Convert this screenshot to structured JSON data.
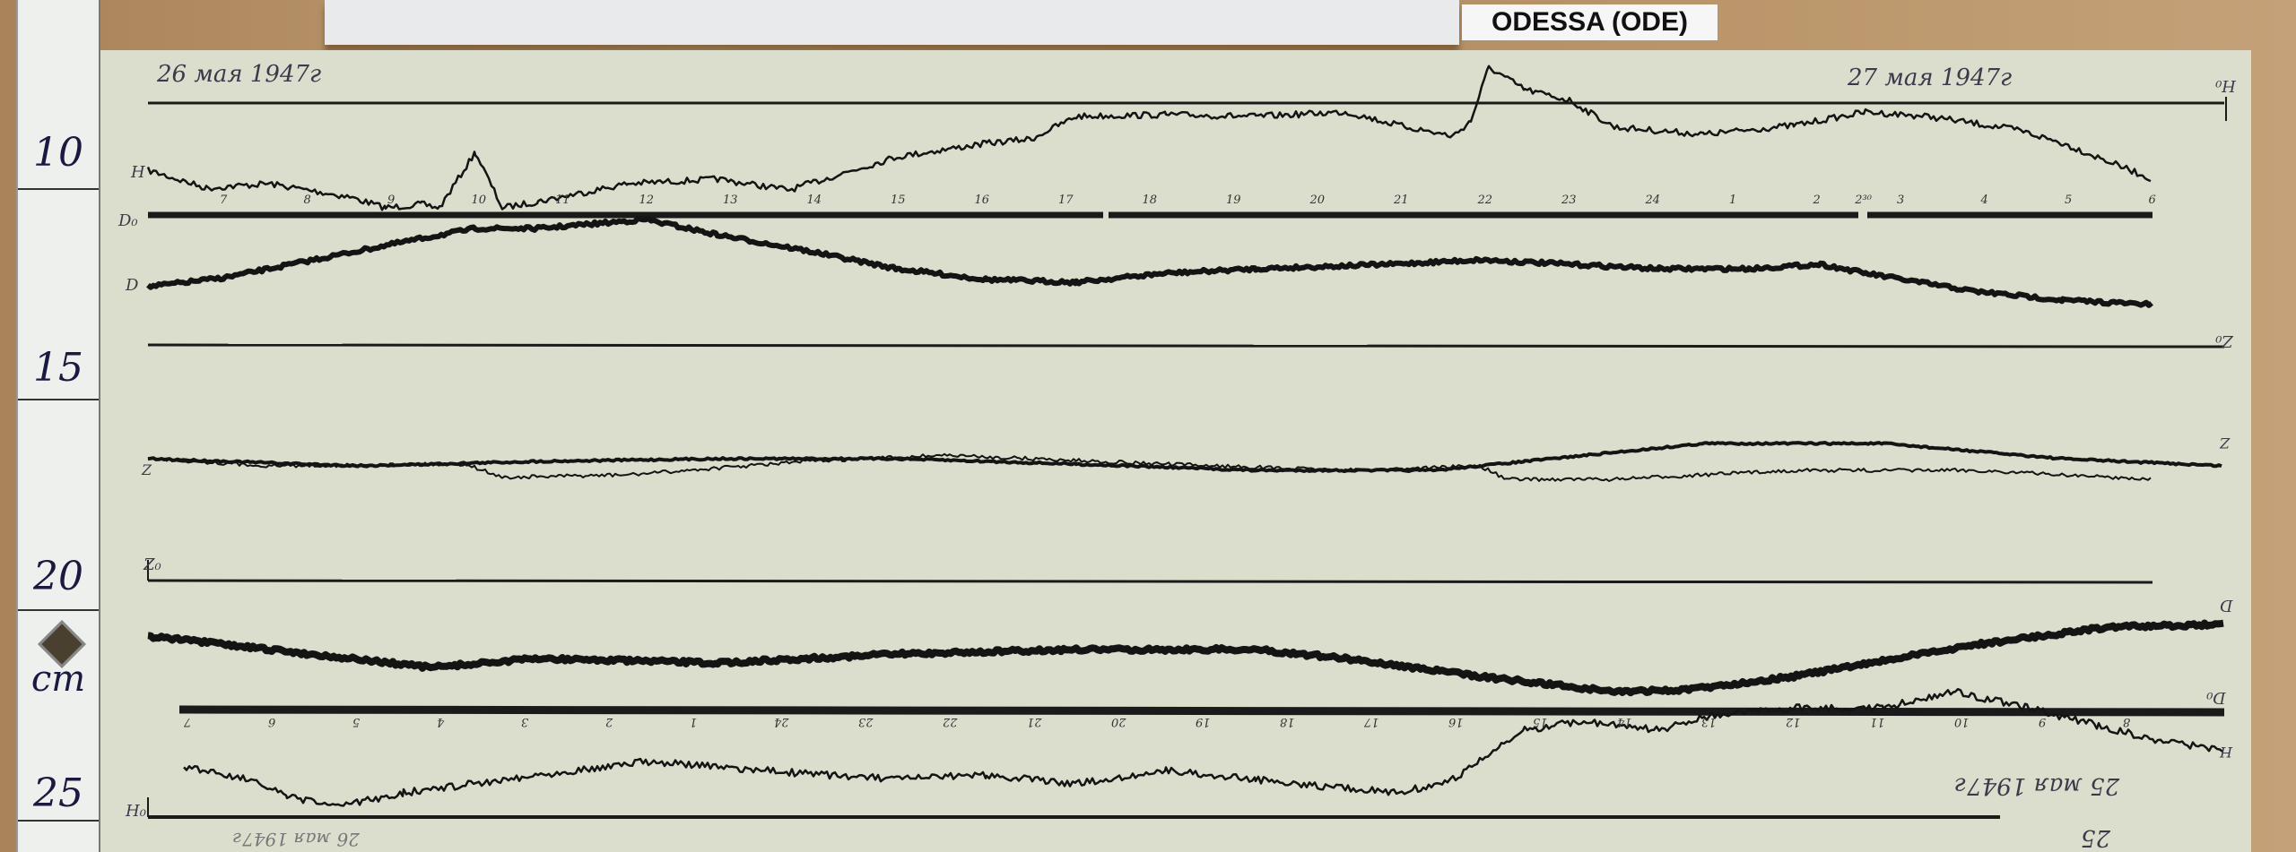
{
  "station_label": "ODESSA (ODE)",
  "ruler": {
    "numbers": [
      "10",
      "15",
      "20",
      "25"
    ],
    "unit": "cm"
  },
  "dates": {
    "top_left": "26 мая 1947г",
    "top_right": "27 мая 1947г",
    "bottom_inverted": "25 мая 1947г",
    "bottom_inverted_short": "25",
    "bottom_left_inverted": "26 мая 1947г"
  },
  "trace_labels": {
    "h": "H",
    "d0": "D₀",
    "d": "D",
    "z": "Z",
    "z0": "Z₀",
    "h0": "H₀",
    "h0_right": "H₀",
    "z0_right": "Z₀",
    "z_right": "Z",
    "d_right": "D",
    "d0_right": "D₀",
    "h_right": "H"
  },
  "top_hours": [
    "7",
    "8",
    "9",
    "10",
    "11",
    "12",
    "13",
    "14",
    "15",
    "16",
    "17",
    "18",
    "19",
    "20",
    "21",
    "22",
    "23",
    "24",
    "1",
    "2",
    "2³⁰",
    "3",
    "4",
    "5",
    "6"
  ],
  "bottom_hours_inverted": [
    "7",
    "6",
    "5",
    "4",
    "3",
    "2",
    "1",
    "24",
    "23",
    "22",
    "21",
    "20",
    "19",
    "18",
    "17",
    "16",
    "15",
    "14",
    "13",
    "12",
    "11",
    "10",
    "9",
    "8"
  ],
  "colors": {
    "paper": "#dcdecd",
    "ink": "#111111",
    "wood": "#b89468"
  }
}
